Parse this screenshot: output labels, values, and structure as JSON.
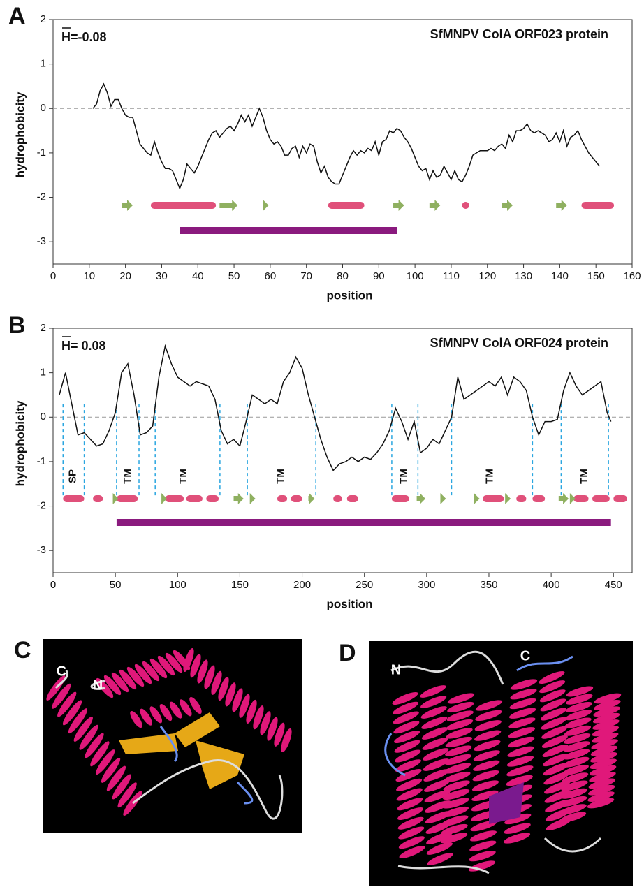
{
  "chart_data": [
    {
      "type": "line",
      "panel": "A",
      "title": "SfMNPV ColA ORF023 protein",
      "mean_label": "H=-0.08",
      "x_label": "position",
      "y_label": "hydrophobicity",
      "xlim": [
        0,
        160
      ],
      "xticks": [
        0,
        10,
        20,
        30,
        40,
        50,
        60,
        70,
        80,
        90,
        100,
        110,
        120,
        130,
        140,
        150,
        160
      ],
      "ylim": [
        -3.5,
        2
      ],
      "yticks": [
        -3,
        -2,
        -1,
        0,
        1,
        2
      ],
      "reference_line": 0,
      "color": "#111111",
      "x": [
        11,
        12,
        13,
        14,
        15,
        16,
        17,
        18,
        19,
        20,
        21,
        22,
        23,
        24,
        25,
        26,
        27,
        28,
        29,
        30,
        31,
        32,
        33,
        34,
        35,
        36,
        37,
        38,
        39,
        40,
        41,
        42,
        43,
        44,
        45,
        46,
        47,
        48,
        49,
        50,
        51,
        52,
        53,
        54,
        55,
        56,
        57,
        58,
        59,
        60,
        61,
        62,
        63,
        64,
        65,
        66,
        67,
        68,
        69,
        70,
        71,
        72,
        73,
        74,
        75,
        76,
        77,
        78,
        79,
        80,
        81,
        82,
        83,
        84,
        85,
        86,
        87,
        88,
        89,
        90,
        91,
        92,
        93,
        94,
        95,
        96,
        97,
        98,
        99,
        100,
        101,
        102,
        103,
        104,
        105,
        106,
        107,
        108,
        109,
        110,
        111,
        112,
        113,
        114,
        115,
        116,
        117,
        118,
        119,
        120,
        121,
        122,
        123,
        124,
        125,
        126,
        127,
        128,
        129,
        130,
        131,
        132,
        133,
        134,
        135,
        136,
        137,
        138,
        139,
        140,
        141,
        142,
        143,
        144,
        145,
        146,
        147,
        148,
        149,
        150,
        151
      ],
      "values": [
        0,
        0.1,
        0.4,
        0.55,
        0.35,
        0.05,
        0.2,
        0.2,
        0,
        -0.15,
        -0.2,
        -0.2,
        -0.5,
        -0.8,
        -0.9,
        -1.0,
        -1.05,
        -0.75,
        -1.0,
        -1.2,
        -1.35,
        -1.35,
        -1.4,
        -1.6,
        -1.8,
        -1.6,
        -1.25,
        -1.35,
        -1.45,
        -1.3,
        -1.1,
        -0.9,
        -0.7,
        -0.55,
        -0.5,
        -0.65,
        -0.55,
        -0.45,
        -0.4,
        -0.5,
        -0.35,
        -0.15,
        -0.3,
        -0.15,
        -0.4,
        -0.2,
        0,
        -0.2,
        -0.5,
        -0.7,
        -0.8,
        -0.75,
        -0.85,
        -1.05,
        -1.05,
        -0.9,
        -0.85,
        -1.1,
        -0.85,
        -1.0,
        -0.8,
        -0.85,
        -1.2,
        -1.45,
        -1.3,
        -1.55,
        -1.65,
        -1.7,
        -1.7,
        -1.5,
        -1.3,
        -1.1,
        -0.95,
        -1.05,
        -0.95,
        -1.0,
        -0.9,
        -0.95,
        -0.75,
        -1.05,
        -0.75,
        -0.7,
        -0.5,
        -0.55,
        -0.45,
        -0.5,
        -0.65,
        -0.75,
        -0.9,
        -1.1,
        -1.3,
        -1.4,
        -1.35,
        -1.6,
        -1.4,
        -1.55,
        -1.5,
        -1.3,
        -1.45,
        -1.6,
        -1.4,
        -1.6,
        -1.65,
        -1.5,
        -1.3,
        -1.05,
        -1.0,
        -0.95,
        -0.95,
        -0.95,
        -0.9,
        -0.95,
        -0.85,
        -0.8,
        -0.9,
        -0.6,
        -0.75,
        -0.5,
        -0.5,
        -0.45,
        -0.35,
        -0.5,
        -0.55,
        -0.5,
        -0.55,
        -0.6,
        -0.75,
        -0.7,
        -0.55,
        -0.75,
        -0.5,
        -0.85,
        -0.65,
        -0.6,
        -0.5,
        -0.7,
        -0.85,
        -1.0,
        -1.1,
        -1.2,
        -1.3
      ],
      "helices": [
        [
          27,
          45
        ],
        [
          76,
          86
        ],
        [
          113,
          115
        ],
        [
          146,
          155
        ]
      ],
      "strands": [
        [
          19,
          22
        ],
        [
          46,
          51
        ],
        [
          58,
          59
        ],
        [
          94,
          97
        ],
        [
          104,
          107
        ],
        [
          124,
          127
        ],
        [
          139,
          142
        ]
      ],
      "domain": [
        35,
        95
      ]
    },
    {
      "type": "line",
      "panel": "B",
      "title": "SfMNPV ColA ORF024 protein",
      "mean_label": "H= 0.08",
      "x_label": "position",
      "y_label": "hydrophobicity",
      "xlim": [
        0,
        465
      ],
      "xticks": [
        0,
        50,
        100,
        150,
        200,
        250,
        300,
        350,
        400,
        450
      ],
      "ylim": [
        -3.5,
        2
      ],
      "yticks": [
        -3,
        -2,
        -1,
        0,
        1,
        2
      ],
      "reference_line": 0,
      "color": "#111111",
      "x": [
        5,
        10,
        15,
        20,
        25,
        30,
        35,
        40,
        45,
        50,
        55,
        60,
        65,
        70,
        75,
        80,
        85,
        90,
        95,
        100,
        105,
        110,
        115,
        120,
        125,
        130,
        135,
        140,
        145,
        150,
        155,
        160,
        165,
        170,
        175,
        180,
        185,
        190,
        195,
        200,
        205,
        210,
        215,
        220,
        225,
        230,
        235,
        240,
        245,
        250,
        255,
        260,
        265,
        270,
        275,
        280,
        285,
        290,
        295,
        300,
        305,
        310,
        315,
        320,
        325,
        330,
        335,
        340,
        345,
        350,
        355,
        360,
        365,
        370,
        375,
        380,
        385,
        390,
        395,
        400,
        405,
        410,
        415,
        420,
        425,
        430,
        435,
        440,
        445,
        448
      ],
      "values": [
        0.5,
        1.0,
        0.3,
        -0.4,
        -0.35,
        -0.5,
        -0.65,
        -0.6,
        -0.3,
        0.1,
        1.0,
        1.2,
        0.5,
        -0.4,
        -0.35,
        -0.2,
        0.9,
        1.6,
        1.2,
        0.9,
        0.8,
        0.7,
        0.8,
        0.75,
        0.7,
        0.4,
        -0.3,
        -0.6,
        -0.5,
        -0.65,
        -0.1,
        0.5,
        0.4,
        0.3,
        0.4,
        0.3,
        0.8,
        1.0,
        1.35,
        1.1,
        0.5,
        0.0,
        -0.5,
        -0.9,
        -1.2,
        -1.05,
        -1.0,
        -0.9,
        -1.0,
        -0.9,
        -0.95,
        -0.8,
        -0.6,
        -0.3,
        0.2,
        -0.1,
        -0.5,
        -0.1,
        -0.8,
        -0.7,
        -0.5,
        -0.6,
        -0.3,
        0.0,
        0.9,
        0.4,
        0.5,
        0.6,
        0.7,
        0.8,
        0.7,
        0.9,
        0.5,
        0.9,
        0.8,
        0.6,
        0.0,
        -0.4,
        -0.1,
        -0.1,
        -0.05,
        0.6,
        1.0,
        0.7,
        0.5,
        0.6,
        0.7,
        0.8,
        0.1,
        -0.1
      ],
      "helices": [
        [
          8,
          25
        ],
        [
          32,
          40
        ],
        [
          51,
          68
        ],
        [
          90,
          105
        ],
        [
          107,
          120
        ],
        [
          123,
          133
        ],
        [
          180,
          188
        ],
        [
          191,
          200
        ],
        [
          225,
          232
        ],
        [
          236,
          245
        ],
        [
          272,
          286
        ],
        [
          345,
          362
        ],
        [
          372,
          380
        ],
        [
          385,
          395
        ],
        [
          418,
          430
        ],
        [
          433,
          447
        ],
        [
          450,
          461
        ]
      ],
      "strands": [
        [
          48,
          51
        ],
        [
          87,
          90
        ],
        [
          145,
          153
        ],
        [
          158,
          162
        ],
        [
          205,
          210
        ],
        [
          292,
          299
        ],
        [
          311,
          315
        ],
        [
          338,
          342
        ],
        [
          363,
          366
        ],
        [
          406,
          414
        ],
        [
          415,
          418
        ]
      ],
      "domain": [
        51,
        448
      ],
      "boundaries": [
        8,
        25,
        51,
        69,
        82,
        134,
        156,
        211,
        272,
        293,
        320,
        385,
        408,
        446
      ],
      "segment_labels": [
        {
          "text": "SP",
          "x": 16
        },
        {
          "text": "TM",
          "x": 60
        },
        {
          "text": "TM",
          "x": 105
        },
        {
          "text": "TM",
          "x": 183
        },
        {
          "text": "TM",
          "x": 282
        },
        {
          "text": "TM",
          "x": 351
        },
        {
          "text": "TM",
          "x": 427
        }
      ]
    }
  ],
  "structure_panels": [
    {
      "panel": "C",
      "termini": [
        "C",
        "N"
      ]
    },
    {
      "panel": "D",
      "termini": [
        "N",
        "C"
      ]
    }
  ]
}
